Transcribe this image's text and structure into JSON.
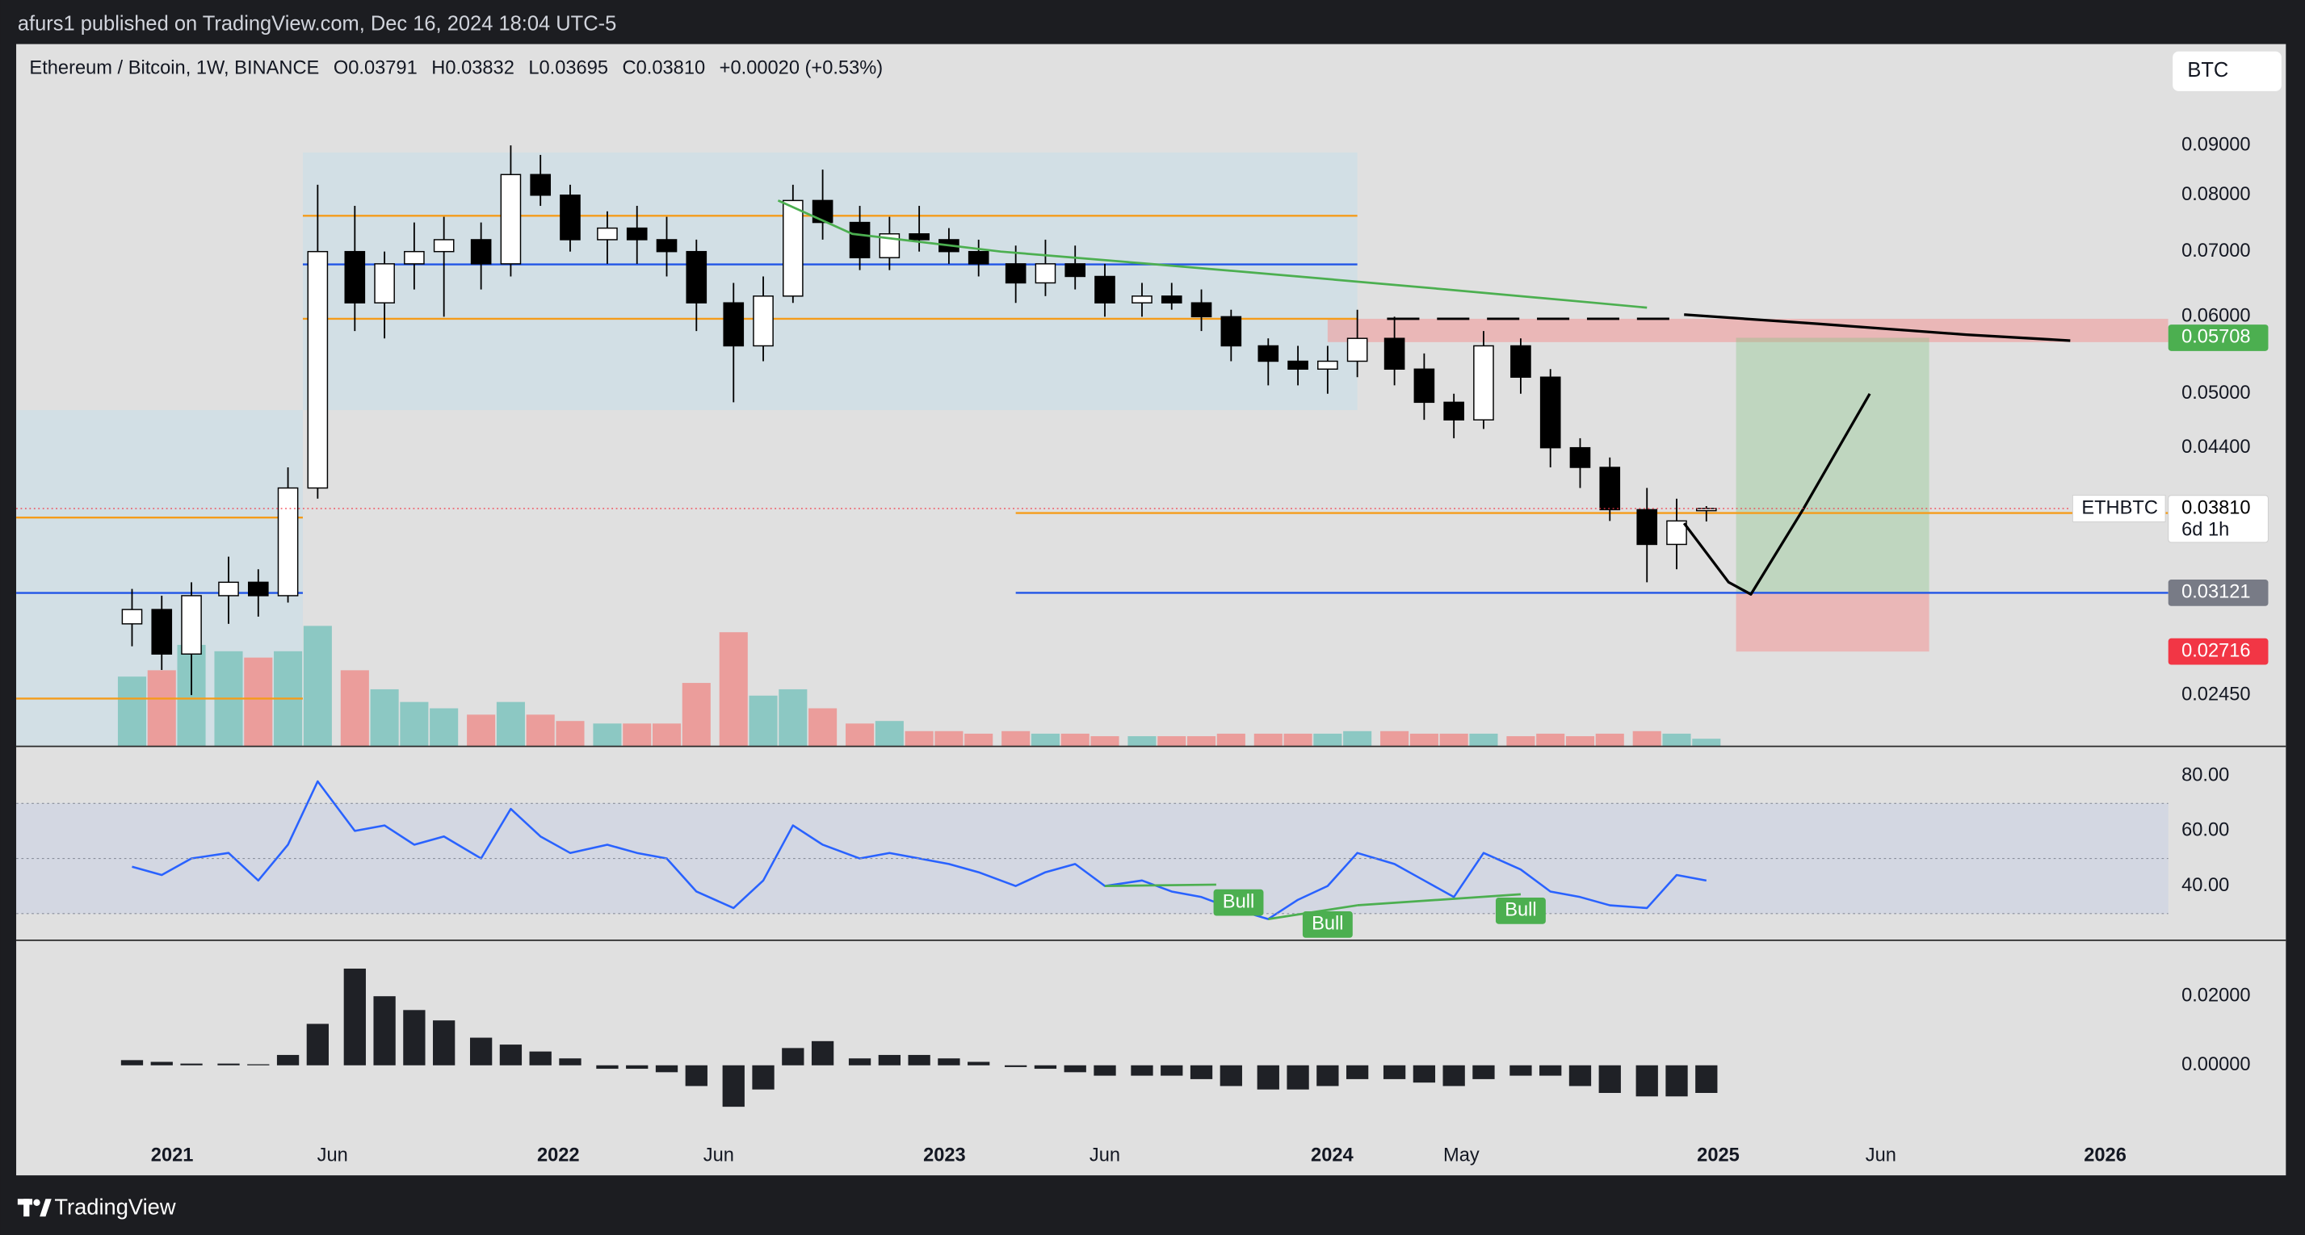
{
  "header": {
    "publisher": "afurs1 published on TradingView.com, Dec 16, 2024 18:04 UTC-5"
  },
  "footer": {
    "brand": "TradingView"
  },
  "currency_button": "BTC",
  "chart_data": [
    {
      "type": "candlestick",
      "title": "Ethereum / Bitcoin, 1W, BINANCE",
      "ohlc_legend": [
        "O0.03791",
        "H0.03832",
        "L0.03695",
        "C0.03810",
        "+0.00020 (+0.53%)"
      ],
      "x": [
        3,
        7,
        11,
        16,
        20,
        24,
        28,
        33,
        37,
        41,
        45,
        50,
        54,
        58,
        62,
        67,
        71,
        75,
        79,
        84,
        88,
        92,
        96,
        101,
        105,
        109,
        113,
        117,
        122,
        126,
        130,
        134,
        139,
        143,
        147,
        151,
        156,
        160,
        164,
        168,
        173,
        177,
        181,
        185,
        190,
        194,
        198,
        202,
        207,
        211,
        215
      ],
      "open": [
        0.029,
        0.03,
        0.027,
        0.031,
        0.032,
        0.031,
        0.04,
        0.07,
        0.062,
        0.068,
        0.07,
        0.072,
        0.068,
        0.084,
        0.08,
        0.072,
        0.074,
        0.072,
        0.07,
        0.062,
        0.056,
        0.063,
        0.079,
        0.075,
        0.069,
        0.073,
        0.072,
        0.07,
        0.068,
        0.065,
        0.068,
        0.066,
        0.062,
        0.063,
        0.062,
        0.06,
        0.056,
        0.054,
        0.053,
        0.054,
        0.057,
        0.053,
        0.049,
        0.047,
        0.056,
        0.052,
        0.044,
        0.042,
        0.038,
        0.035,
        0.03791
      ],
      "high": [
        0.0315,
        0.031,
        0.032,
        0.034,
        0.033,
        0.042,
        0.082,
        0.078,
        0.07,
        0.075,
        0.076,
        0.075,
        0.09,
        0.088,
        0.082,
        0.077,
        0.078,
        0.076,
        0.072,
        0.065,
        0.066,
        0.082,
        0.085,
        0.078,
        0.076,
        0.078,
        0.074,
        0.072,
        0.071,
        0.072,
        0.071,
        0.068,
        0.065,
        0.065,
        0.064,
        0.061,
        0.057,
        0.056,
        0.056,
        0.061,
        0.06,
        0.055,
        0.05,
        0.058,
        0.057,
        0.053,
        0.045,
        0.043,
        0.04,
        0.039,
        0.03832
      ],
      "low": [
        0.0275,
        0.026,
        0.0245,
        0.029,
        0.0295,
        0.0305,
        0.039,
        0.058,
        0.057,
        0.064,
        0.06,
        0.064,
        0.066,
        0.078,
        0.07,
        0.068,
        0.068,
        0.066,
        0.058,
        0.049,
        0.054,
        0.062,
        0.072,
        0.067,
        0.067,
        0.07,
        0.068,
        0.066,
        0.062,
        0.063,
        0.064,
        0.06,
        0.06,
        0.061,
        0.058,
        0.054,
        0.051,
        0.051,
        0.05,
        0.052,
        0.051,
        0.047,
        0.045,
        0.046,
        0.05,
        0.042,
        0.04,
        0.037,
        0.032,
        0.033,
        0.03695
      ],
      "close": [
        0.03,
        0.027,
        0.031,
        0.032,
        0.031,
        0.04,
        0.07,
        0.062,
        0.068,
        0.07,
        0.072,
        0.068,
        0.084,
        0.08,
        0.072,
        0.074,
        0.072,
        0.07,
        0.062,
        0.056,
        0.063,
        0.079,
        0.075,
        0.069,
        0.073,
        0.072,
        0.07,
        0.068,
        0.065,
        0.068,
        0.066,
        0.062,
        0.063,
        0.062,
        0.06,
        0.056,
        0.054,
        0.053,
        0.054,
        0.057,
        0.053,
        0.049,
        0.047,
        0.056,
        0.052,
        0.044,
        0.042,
        0.038,
        0.035,
        0.037,
        0.0381
      ],
      "up_color": "#ffffff",
      "down_color": "#000000",
      "volume": [
        55,
        60,
        80,
        75,
        70,
        75,
        95,
        60,
        45,
        35,
        30,
        25,
        35,
        25,
        20,
        18,
        18,
        18,
        50,
        90,
        40,
        45,
        30,
        18,
        20,
        12,
        12,
        10,
        12,
        10,
        10,
        8,
        8,
        8,
        8,
        10,
        10,
        10,
        10,
        12,
        12,
        10,
        10,
        10,
        8,
        10,
        8,
        10,
        12,
        10,
        6
      ],
      "volume_up_color": "#8cc8c3",
      "volume_down_color": "#eb9d9b",
      "log_scale": true,
      "ylim": [
        0.0217,
        0.1144
      ],
      "yticks": [
        {
          "value": 0.09,
          "label": "0.09000"
        },
        {
          "value": 0.08,
          "label": "0.08000"
        },
        {
          "value": 0.07,
          "label": "0.07000"
        },
        {
          "value": 0.06,
          "label": "0.06000"
        },
        {
          "value": 0.05,
          "label": "0.05000"
        },
        {
          "value": 0.044,
          "label": "0.04400"
        },
        {
          "value": 0.0245,
          "label": "0.02450"
        }
      ],
      "xlim": [
        -12.6,
        277.2
      ],
      "xticks": [
        {
          "value": 8.4,
          "label": "2021"
        },
        {
          "value": 30,
          "label": "Jun"
        },
        {
          "value": 60.4,
          "label": "2022"
        },
        {
          "value": 82,
          "label": "Jun"
        },
        {
          "value": 112.4,
          "label": "2023"
        },
        {
          "value": 134,
          "label": "Jun"
        },
        {
          "value": 164.6,
          "label": "2024"
        },
        {
          "value": 182,
          "label": "May"
        },
        {
          "value": 216.6,
          "label": "2025"
        },
        {
          "value": 238.5,
          "label": "Jun"
        },
        {
          "value": 268.7,
          "label": "2026"
        }
      ],
      "zones": [
        {
          "x": [
            26,
            168
          ],
          "y": [
            0.0481,
            0.0885
          ],
          "color": "rgba(200,222,232,0.6)"
        },
        {
          "x": [
            -12.6,
            26
          ],
          "y": [
            0.0217,
            0.0481
          ],
          "color": "rgba(200,222,232,0.6)"
        },
        {
          "x": [
            164,
            277.2
          ],
          "y": [
            0.0565,
            0.0597
          ],
          "color": "rgba(242,150,150,0.55)"
        }
      ],
      "levels": [
        {
          "value": 0.0762,
          "x": [
            26,
            168
          ],
          "color": "#f59c1a"
        },
        {
          "value": 0.0679,
          "x": [
            26,
            168
          ],
          "color": "#2155e6"
        },
        {
          "value": 0.0597,
          "x": [
            26,
            168
          ],
          "color": "#f59c1a"
        },
        {
          "value": 0.0373,
          "x": [
            -12.6,
            26
          ],
          "color": "#f59c1a"
        },
        {
          "value": 0.0312,
          "x": [
            -12.6,
            26
          ],
          "color": "#2155e6"
        },
        {
          "value": 0.0243,
          "x": [
            -12.6,
            26
          ],
          "color": "#f59c1a"
        },
        {
          "value": 0.0377,
          "x": [
            122,
            277.2
          ],
          "color": "#f59c1a"
        },
        {
          "value": 0.03121,
          "x": [
            122,
            277.2
          ],
          "color": "#2155e6"
        },
        {
          "value": 0.0597,
          "x": [
            172,
            212
          ],
          "color": "#000000",
          "dash": true
        }
      ],
      "sma": {
        "x": [
          90,
          100,
          120,
          140,
          160,
          180,
          200,
          207
        ],
        "values": [
          0.079,
          0.073,
          0.07,
          0.068,
          0.066,
          0.064,
          0.062,
          0.0613
        ],
        "color": "#4caf50"
      },
      "projections": [
        {
          "x": [
            212,
            230,
            250,
            264
          ],
          "values": [
            0.0603,
            0.059,
            0.0575,
            0.0567
          ],
          "color": "#000000"
        },
        {
          "x": [
            212,
            218,
            221,
            228,
            237
          ],
          "values": [
            0.0368,
            0.032,
            0.0311,
            0.038,
            0.05
          ],
          "color": "#000000"
        }
      ],
      "position": {
        "x": [
          219,
          245
        ],
        "entry": 0.03121,
        "target": 0.05708,
        "stop": 0.02716,
        "profit_color": "rgba(130,195,130,0.35)",
        "loss_color": "rgba(242,150,150,0.55)"
      },
      "price_labels": [
        {
          "value": 0.05708,
          "label": "0.05708",
          "color": "#4caf50",
          "text_color": "#ffffff"
        },
        {
          "value": 0.0381,
          "label": "0.03810",
          "color": "#ffffff",
          "text_color": "#000000"
        },
        {
          "value": 0.03121,
          "label": "0.03121",
          "color": "#787b86",
          "text_color": "#ffffff"
        },
        {
          "value": 0.02716,
          "label": "0.02716",
          "color": "#f23645",
          "text_color": "#ffffff"
        }
      ],
      "symbol_label": "ETHBTC",
      "countdown": "6d 1h"
    },
    {
      "type": "line",
      "values": [
        47,
        44,
        50,
        52,
        42,
        55,
        78,
        60,
        62,
        55,
        58,
        50,
        68,
        58,
        52,
        55,
        52,
        50,
        38,
        32,
        42,
        62,
        55,
        50,
        52,
        50,
        48,
        45,
        40,
        45,
        48,
        40,
        42,
        38,
        36,
        32,
        28,
        35,
        40,
        52,
        48,
        42,
        36,
        52,
        46,
        38,
        36,
        33,
        32,
        44,
        42
      ],
      "color": "#2962ff",
      "ylim": [
        20.3,
        90.7
      ],
      "yticks": [
        {
          "value": 80,
          "label": "80.00"
        },
        {
          "value": 60,
          "label": "60.00"
        },
        {
          "value": 40,
          "label": "40.00"
        }
      ],
      "band": [
        30,
        70
      ],
      "midline": 50,
      "annotations": [
        {
          "text": "Bull",
          "x": 152,
          "y": 34,
          "line": [
            [
              134,
              40
            ],
            [
              149,
              40.5
            ]
          ]
        },
        {
          "text": "Bull",
          "x": 164,
          "y": 26,
          "line": [
            [
              156,
              28
            ],
            [
              168,
              33
            ]
          ]
        },
        {
          "text": "Bull",
          "x": 190,
          "y": 31,
          "line": [
            [
              168,
              33
            ],
            [
              190,
              37
            ]
          ]
        }
      ],
      "annotation_color": "#4caf50"
    },
    {
      "type": "bar",
      "values": [
        0.0015,
        0.001,
        0.0005,
        0.0005,
        0.0003,
        0.003,
        0.012,
        0.028,
        0.02,
        0.016,
        0.013,
        0.008,
        0.006,
        0.004,
        0.002,
        -0.001,
        -0.001,
        -0.002,
        -0.006,
        -0.012,
        -0.007,
        0.005,
        0.007,
        0.002,
        0.003,
        0.003,
        0.002,
        0.001,
        -0.0005,
        -0.001,
        -0.002,
        -0.003,
        -0.003,
        -0.003,
        -0.004,
        -0.006,
        -0.007,
        -0.007,
        -0.006,
        -0.004,
        -0.004,
        -0.005,
        -0.006,
        -0.004,
        -0.003,
        -0.003,
        -0.006,
        -0.008,
        -0.009,
        -0.009,
        -0.008
      ],
      "color": "#1f2126",
      "ylim": [
        -0.0191,
        0.0362
      ],
      "yticks": [
        {
          "value": 0.02,
          "label": "0.02000"
        },
        {
          "value": 0,
          "label": "0.00000"
        }
      ]
    }
  ]
}
